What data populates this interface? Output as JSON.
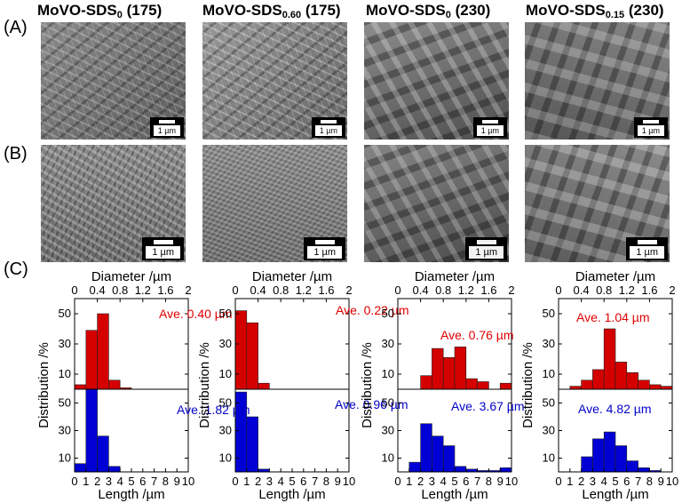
{
  "panel_labels": {
    "a": "(A)",
    "b": "(B)",
    "c": "(C)"
  },
  "columns": [
    {
      "base": "MoVO-SDS",
      "sub": "0",
      "suffix": " (175)"
    },
    {
      "base": "MoVO-SDS",
      "sub": "0.60",
      "suffix": " (175)"
    },
    {
      "base": "MoVO-SDS",
      "sub": "0",
      "suffix": " (230)"
    },
    {
      "base": "MoVO-SDS",
      "sub": "0.15",
      "suffix": " (230)"
    }
  ],
  "scale_bar_label": "1 µm",
  "axis_labels": {
    "diameter": "Diameter /µm",
    "length": "Length /µm",
    "distribution": "Distribution /%"
  },
  "colors": {
    "diameter": "#d40000",
    "length": "#0000d4",
    "diameter_text": "#e00000",
    "length_text": "#0000c8"
  },
  "chart_data": [
    {
      "type": "bar",
      "sample": "MoVO-SDS0 (175)",
      "diameter": {
        "xlabel": "Diameter /µm",
        "xlim": [
          0,
          2
        ],
        "bin_width": 0.2,
        "xticks": [
          "0",
          "0.4",
          "0.8",
          "1.2",
          "1.6",
          "2"
        ],
        "ylabel": "Distribution /%",
        "ylim": [
          0,
          60
        ],
        "yticks": [
          "10",
          "30",
          "50"
        ],
        "bins": [
          0,
          0.2,
          0.4,
          0.6,
          0.8,
          1.0,
          1.2,
          1.4,
          1.6,
          1.8
        ],
        "values": [
          3,
          39,
          50,
          6,
          1,
          0,
          0,
          0,
          0,
          0
        ],
        "average": "Ave. 0.40 µm"
      },
      "length": {
        "xlabel": "Length /µm",
        "xlim": [
          0,
          10
        ],
        "bin_width": 1,
        "xticks": [
          "0",
          "1",
          "2",
          "3",
          "4",
          "5",
          "6",
          "7",
          "8",
          "9",
          "10"
        ],
        "ylabel": "Distribution /%",
        "ylim": [
          0,
          60
        ],
        "yticks": [
          "10",
          "30",
          "50"
        ],
        "bins": [
          0,
          1,
          2,
          3,
          4,
          5,
          6,
          7,
          8,
          9
        ],
        "values": [
          6,
          60,
          26,
          4,
          0,
          0,
          0,
          0,
          0,
          0
        ],
        "average": "Ave. 1.82 µm"
      }
    },
    {
      "type": "bar",
      "sample": "MoVO-SDS0.60 (175)",
      "diameter": {
        "xlabel": "Diameter /µm",
        "xlim": [
          0,
          2
        ],
        "bin_width": 0.2,
        "xticks": [
          "0",
          "0.4",
          "0.8",
          "1.2",
          "1.6",
          "2"
        ],
        "ylabel": "Distribution /%",
        "ylim": [
          0,
          60
        ],
        "yticks": [
          "10",
          "30",
          "50"
        ],
        "bins": [
          0,
          0.2,
          0.4,
          0.6,
          0.8,
          1.0,
          1.2,
          1.4,
          1.6,
          1.8
        ],
        "values": [
          52,
          44,
          4,
          0,
          0,
          0,
          0,
          0,
          0,
          0
        ],
        "average": "Ave. 0.22 µm"
      },
      "length": {
        "xlabel": "Length /µm",
        "xlim": [
          0,
          10
        ],
        "bin_width": 1,
        "xticks": [
          "0",
          "1",
          "2",
          "3",
          "4",
          "5",
          "6",
          "7",
          "8",
          "9",
          "10"
        ],
        "ylabel": "Distribution /%",
        "ylim": [
          0,
          60
        ],
        "yticks": [
          "10",
          "30",
          "50"
        ],
        "bins": [
          0,
          1,
          2,
          3,
          4,
          5,
          6,
          7,
          8,
          9
        ],
        "values": [
          58,
          40,
          2,
          0,
          0,
          0,
          0,
          0,
          0,
          0
        ],
        "average": "Ave. 0.96 µm"
      }
    },
    {
      "type": "bar",
      "sample": "MoVO-SDS0 (230)",
      "diameter": {
        "xlabel": "Diameter /µm",
        "xlim": [
          0,
          2
        ],
        "bin_width": 0.2,
        "xticks": [
          "0",
          "0.4",
          "0.8",
          "1.2",
          "1.6",
          "2"
        ],
        "ylabel": "Distribution /%",
        "ylim": [
          0,
          60
        ],
        "yticks": [
          "10",
          "30",
          "50"
        ],
        "bins": [
          0,
          0.2,
          0.4,
          0.6,
          0.8,
          1.0,
          1.2,
          1.4,
          1.6,
          1.8
        ],
        "values": [
          0,
          0,
          9,
          27,
          21,
          28,
          7,
          5,
          0,
          4
        ],
        "average": "Ave. 0.76 µm"
      },
      "length": {
        "xlabel": "Length /µm",
        "xlim": [
          0,
          10
        ],
        "bin_width": 1,
        "xticks": [
          "0",
          "1",
          "2",
          "3",
          "4",
          "5",
          "6",
          "7",
          "8",
          "9",
          "10"
        ],
        "ylabel": "Distribution /%",
        "ylim": [
          0,
          60
        ],
        "yticks": [
          "10",
          "30",
          "50"
        ],
        "bins": [
          0,
          1,
          2,
          3,
          4,
          5,
          6,
          7,
          8,
          9
        ],
        "values": [
          0,
          7,
          35,
          26,
          19,
          4,
          2,
          1,
          1,
          3
        ],
        "average": "Ave. 3.67 µm"
      }
    },
    {
      "type": "bar",
      "sample": "MoVO-SDS0.15 (230)",
      "diameter": {
        "xlabel": "Diameter /µm",
        "xlim": [
          0,
          2
        ],
        "bin_width": 0.2,
        "xticks": [
          "0",
          "0.4",
          "0.8",
          "1.2",
          "1.6",
          "2"
        ],
        "ylabel": "Distribution /%",
        "ylim": [
          0,
          60
        ],
        "yticks": [
          "10",
          "30",
          "50"
        ],
        "bins": [
          0,
          0.2,
          0.4,
          0.6,
          0.8,
          1.0,
          1.2,
          1.4,
          1.6,
          1.8
        ],
        "values": [
          0,
          2,
          6,
          13,
          40,
          18,
          11,
          6,
          3,
          2
        ],
        "average": "Ave. 1.04 µm"
      },
      "length": {
        "xlabel": "Length /µm",
        "xlim": [
          0,
          10
        ],
        "bin_width": 1,
        "xticks": [
          "0",
          "1",
          "2",
          "3",
          "4",
          "5",
          "6",
          "7",
          "8",
          "9",
          "10"
        ],
        "ylabel": "Distribution /%",
        "ylim": [
          0,
          60
        ],
        "yticks": [
          "10",
          "30",
          "50"
        ],
        "bins": [
          0,
          1,
          2,
          3,
          4,
          5,
          6,
          7,
          8,
          9
        ],
        "values": [
          0,
          0,
          11,
          24,
          29,
          19,
          8,
          3,
          1,
          0
        ],
        "average": "Ave. 4.82 µm"
      }
    }
  ]
}
